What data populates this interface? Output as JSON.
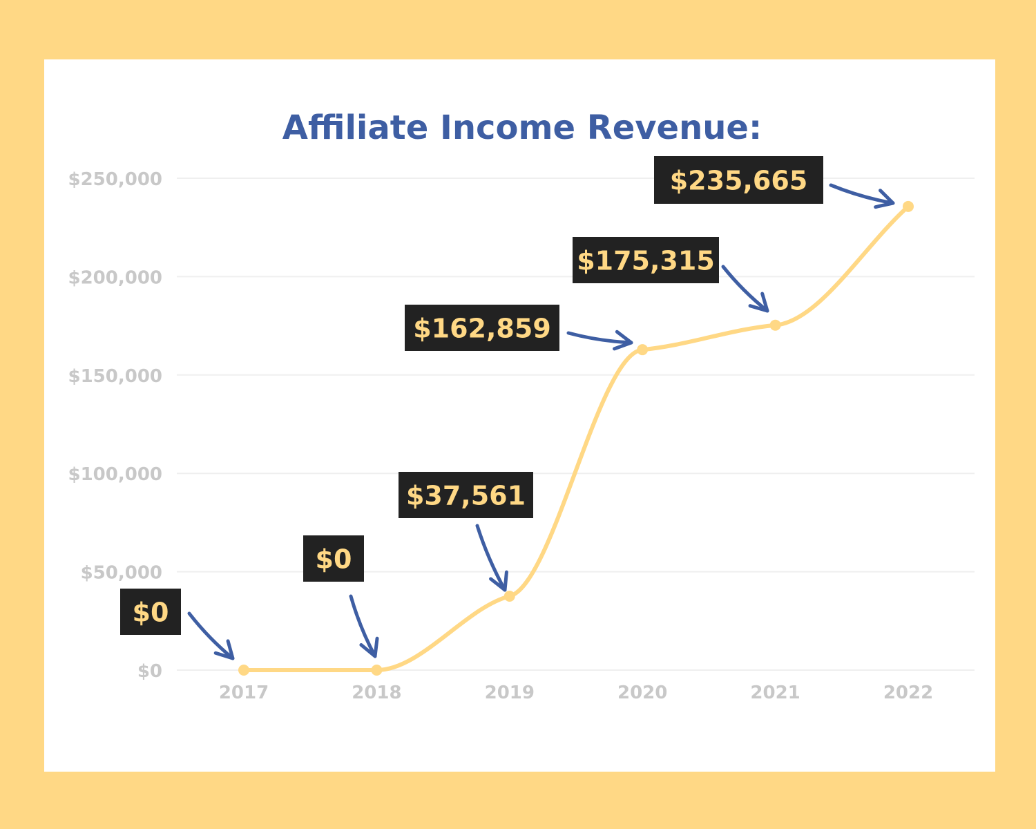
{
  "colors": {
    "page_background": "#FFD885",
    "card_background": "#FFFFFF",
    "title": "#3E5EA3",
    "line": "#FFD885",
    "axis_text": "#C8C8C8",
    "grid": "#EFEFEF",
    "label_box": "#222222",
    "label_text": "#FFD885",
    "arrow": "#3E5EA3"
  },
  "chart_data": {
    "type": "line",
    "title": "Affiliate Income Revenue:",
    "xlabel": "",
    "ylabel": "",
    "categories": [
      "2017",
      "2018",
      "2019",
      "2020",
      "2021",
      "2022"
    ],
    "series": [
      {
        "values": [
          0,
          0,
          37561,
          162859,
          175315,
          235665
        ]
      }
    ],
    "data_labels": [
      "$0",
      "$0",
      "$37,561",
      "$162,859",
      "$175,315",
      "$235,665"
    ],
    "y_ticks": [
      0,
      50000,
      100000,
      150000,
      200000,
      250000
    ],
    "y_tick_labels": [
      "$0",
      "$50,000",
      "$100,000",
      "$150,000",
      "$200,000",
      "$250,000"
    ],
    "ylim": [
      0,
      250000
    ],
    "grid": true,
    "legend": "none",
    "smooth": true,
    "annotation_style": "dark-boxed labels with hand-drawn arrows pointing at each point"
  }
}
